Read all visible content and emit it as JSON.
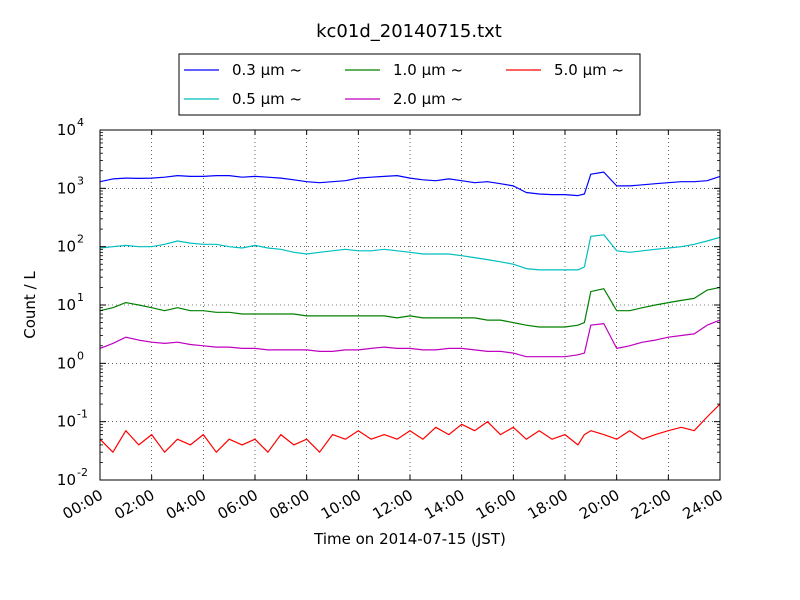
{
  "chart_data": {
    "type": "line",
    "title": "kc01d_20140715.txt",
    "xlabel": "Time on 2014-07-15 (JST)",
    "ylabel": "Count / L",
    "y_scale": "log",
    "xlim": [
      "00:00",
      "24:00"
    ],
    "ylim": [
      0.01,
      10000
    ],
    "grid": true,
    "legend": {
      "placement": "top-center",
      "columns": 3,
      "entries": [
        "0.3 μm ~",
        "0.5 μm ~",
        "1.0 μm ~",
        "2.0 μm ~",
        "5.0 μm ~"
      ]
    },
    "x_ticks": [
      "00:00",
      "02:00",
      "04:00",
      "06:00",
      "08:00",
      "10:00",
      "12:00",
      "14:00",
      "16:00",
      "18:00",
      "20:00",
      "22:00",
      "24:00"
    ],
    "y_ticks": [
      {
        "base": "10",
        "exp": "-2"
      },
      {
        "base": "10",
        "exp": "-1"
      },
      {
        "base": "10",
        "exp": "0"
      },
      {
        "base": "10",
        "exp": "1"
      },
      {
        "base": "10",
        "exp": "2"
      },
      {
        "base": "10",
        "exp": "3"
      },
      {
        "base": "10",
        "exp": "4"
      }
    ],
    "series": [
      {
        "name": "0.3 μm ~",
        "color": "#0000ff",
        "x": [
          "00:00",
          "00:30",
          "01:00",
          "01:30",
          "02:00",
          "02:30",
          "03:00",
          "03:30",
          "04:00",
          "04:30",
          "05:00",
          "05:30",
          "06:00",
          "06:30",
          "07:00",
          "07:30",
          "08:00",
          "08:30",
          "09:00",
          "09:30",
          "10:00",
          "10:30",
          "11:00",
          "11:30",
          "12:00",
          "12:30",
          "13:00",
          "13:30",
          "14:00",
          "14:30",
          "15:00",
          "15:30",
          "16:00",
          "16:30",
          "17:00",
          "17:30",
          "18:00",
          "18:30",
          "18:45",
          "19:00",
          "19:30",
          "20:00",
          "20:30",
          "21:00",
          "21:30",
          "22:00",
          "22:30",
          "23:00",
          "23:30",
          "24:00"
        ],
        "values": [
          1300,
          1450,
          1500,
          1480,
          1500,
          1550,
          1650,
          1600,
          1600,
          1650,
          1650,
          1550,
          1600,
          1550,
          1500,
          1400,
          1300,
          1250,
          1300,
          1350,
          1500,
          1550,
          1600,
          1650,
          1500,
          1400,
          1350,
          1450,
          1350,
          1250,
          1300,
          1200,
          1100,
          850,
          800,
          780,
          780,
          750,
          800,
          1750,
          1900,
          1100,
          1100,
          1150,
          1200,
          1250,
          1300,
          1300,
          1350,
          1600
        ]
      },
      {
        "name": "0.5 μm ~",
        "color": "#00bfbf",
        "x": [
          "00:00",
          "00:30",
          "01:00",
          "01:30",
          "02:00",
          "02:30",
          "03:00",
          "03:30",
          "04:00",
          "04:30",
          "05:00",
          "05:30",
          "06:00",
          "06:30",
          "07:00",
          "07:30",
          "08:00",
          "08:30",
          "09:00",
          "09:30",
          "10:00",
          "10:30",
          "11:00",
          "11:30",
          "12:00",
          "12:30",
          "13:00",
          "13:30",
          "14:00",
          "14:30",
          "15:00",
          "15:30",
          "16:00",
          "16:30",
          "17:00",
          "17:30",
          "18:00",
          "18:30",
          "18:45",
          "19:00",
          "19:30",
          "20:00",
          "20:30",
          "21:00",
          "21:30",
          "22:00",
          "22:30",
          "23:00",
          "23:30",
          "24:00"
        ],
        "values": [
          95,
          100,
          105,
          100,
          100,
          110,
          125,
          115,
          110,
          110,
          100,
          95,
          105,
          95,
          90,
          80,
          75,
          80,
          85,
          90,
          85,
          85,
          90,
          85,
          80,
          75,
          75,
          75,
          70,
          65,
          60,
          55,
          50,
          42,
          40,
          40,
          40,
          40,
          45,
          150,
          160,
          85,
          80,
          85,
          90,
          95,
          100,
          110,
          125,
          145
        ]
      },
      {
        "name": "1.0 μm ~",
        "color": "#008000",
        "x": [
          "00:00",
          "00:30",
          "01:00",
          "01:30",
          "02:00",
          "02:30",
          "03:00",
          "03:30",
          "04:00",
          "04:30",
          "05:00",
          "05:30",
          "06:00",
          "06:30",
          "07:00",
          "07:30",
          "08:00",
          "08:30",
          "09:00",
          "09:30",
          "10:00",
          "10:30",
          "11:00",
          "11:30",
          "12:00",
          "12:30",
          "13:00",
          "13:30",
          "14:00",
          "14:30",
          "15:00",
          "15:30",
          "16:00",
          "16:30",
          "17:00",
          "17:30",
          "18:00",
          "18:30",
          "18:45",
          "19:00",
          "19:30",
          "20:00",
          "20:30",
          "21:00",
          "21:30",
          "22:00",
          "22:30",
          "23:00",
          "23:30",
          "24:00"
        ],
        "values": [
          8,
          9,
          11,
          10,
          9,
          8,
          9,
          8,
          8,
          7.5,
          7.5,
          7,
          7,
          7,
          7,
          7,
          6.5,
          6.5,
          6.5,
          6.5,
          6.5,
          6.5,
          6.5,
          6,
          6.5,
          6,
          6,
          6,
          6,
          6,
          5.5,
          5.5,
          5,
          4.5,
          4.2,
          4.2,
          4.2,
          4.5,
          5,
          17,
          19,
          8,
          8,
          9,
          10,
          11,
          12,
          13,
          18,
          20
        ]
      },
      {
        "name": "2.0 μm ~",
        "color": "#bf00bf",
        "x": [
          "00:00",
          "00:30",
          "01:00",
          "01:30",
          "02:00",
          "02:30",
          "03:00",
          "03:30",
          "04:00",
          "04:30",
          "05:00",
          "05:30",
          "06:00",
          "06:30",
          "07:00",
          "07:30",
          "08:00",
          "08:30",
          "09:00",
          "09:30",
          "10:00",
          "10:30",
          "11:00",
          "11:30",
          "12:00",
          "12:30",
          "13:00",
          "13:30",
          "14:00",
          "14:30",
          "15:00",
          "15:30",
          "16:00",
          "16:30",
          "17:00",
          "17:30",
          "18:00",
          "18:30",
          "18:45",
          "19:00",
          "19:30",
          "20:00",
          "20:30",
          "21:00",
          "21:30",
          "22:00",
          "22:30",
          "23:00",
          "23:30",
          "24:00"
        ],
        "values": [
          1.8,
          2.2,
          2.8,
          2.5,
          2.3,
          2.2,
          2.3,
          2.1,
          2.0,
          1.9,
          1.9,
          1.8,
          1.8,
          1.7,
          1.7,
          1.7,
          1.7,
          1.6,
          1.6,
          1.7,
          1.7,
          1.8,
          1.9,
          1.8,
          1.8,
          1.7,
          1.7,
          1.8,
          1.8,
          1.7,
          1.6,
          1.6,
          1.5,
          1.3,
          1.3,
          1.3,
          1.3,
          1.4,
          1.5,
          4.5,
          4.8,
          1.8,
          2.0,
          2.3,
          2.5,
          2.8,
          3.0,
          3.2,
          4.5,
          5.5
        ]
      },
      {
        "name": "5.0 μm ~",
        "color": "#ff0000",
        "x": [
          "00:00",
          "00:30",
          "01:00",
          "01:30",
          "02:00",
          "02:30",
          "03:00",
          "03:30",
          "04:00",
          "04:30",
          "05:00",
          "05:30",
          "06:00",
          "06:30",
          "07:00",
          "07:30",
          "08:00",
          "08:30",
          "09:00",
          "09:30",
          "10:00",
          "10:30",
          "11:00",
          "11:30",
          "12:00",
          "12:30",
          "13:00",
          "13:30",
          "14:00",
          "14:30",
          "15:00",
          "15:30",
          "16:00",
          "16:30",
          "17:00",
          "17:30",
          "18:00",
          "18:30",
          "18:45",
          "19:00",
          "19:30",
          "20:00",
          "20:30",
          "21:00",
          "21:30",
          "22:00",
          "22:30",
          "23:00",
          "23:30",
          "24:00"
        ],
        "values": [
          0.05,
          0.03,
          0.07,
          0.04,
          0.06,
          0.03,
          0.05,
          0.04,
          0.06,
          0.03,
          0.05,
          0.04,
          0.05,
          0.03,
          0.06,
          0.04,
          0.05,
          0.03,
          0.06,
          0.05,
          0.07,
          0.05,
          0.06,
          0.05,
          0.07,
          0.05,
          0.08,
          0.06,
          0.09,
          0.07,
          0.1,
          0.06,
          0.08,
          0.05,
          0.07,
          0.05,
          0.06,
          0.04,
          0.06,
          0.07,
          0.06,
          0.05,
          0.07,
          0.05,
          0.06,
          0.07,
          0.08,
          0.07,
          0.12,
          0.2
        ]
      }
    ]
  }
}
